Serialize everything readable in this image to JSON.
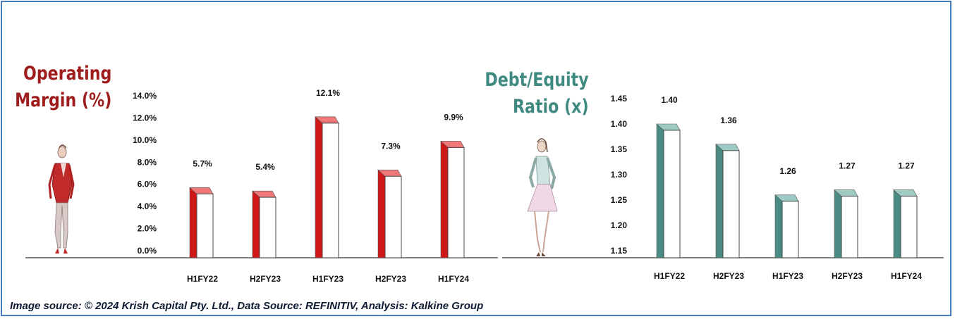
{
  "caption": "Image source: © 2024 Krish Capital Pty. Ltd., Data Source: REFINITIV, Analysis: Kalkine Group",
  "chart_data": [
    {
      "type": "bar",
      "title_lines": [
        "Operating",
        "Margin (%)"
      ],
      "categories": [
        "H1FY22",
        "H2FY23",
        "H1FY23",
        "H2FY23",
        "H1FY24"
      ],
      "values": [
        5.7,
        5.4,
        12.1,
        7.3,
        9.9
      ],
      "value_labels": [
        "5.7%",
        "5.4%",
        "12.1%",
        "7.3%",
        "9.9%"
      ],
      "yticks": [
        "0.0%",
        "2.0%",
        "4.0%",
        "6.0%",
        "8.0%",
        "10.0%",
        "12.0%",
        "14.0%"
      ],
      "ylim": [
        0,
        14
      ],
      "bar_color": "#d01818",
      "bar_top_color": "#f07878",
      "title_color": "#9e1c1c"
    },
    {
      "type": "bar",
      "title_lines": [
        "Debt/Equity",
        "Ratio (x)"
      ],
      "categories": [
        "H1FY22",
        "H2FY23",
        "H1FY23",
        "H2FY23",
        "H1FY24"
      ],
      "values": [
        1.4,
        1.36,
        1.26,
        1.27,
        1.27
      ],
      "value_labels": [
        "1.40",
        "1.36",
        "1.26",
        "1.27",
        "1.27"
      ],
      "yticks": [
        "1.15",
        "1.20",
        "1.25",
        "1.30",
        "1.35",
        "1.40",
        "1.45"
      ],
      "ylim": [
        1.15,
        1.45
      ],
      "bar_color": "#4a8c84",
      "bar_top_color": "#9dcbc4",
      "title_color": "#3f8a80"
    }
  ]
}
